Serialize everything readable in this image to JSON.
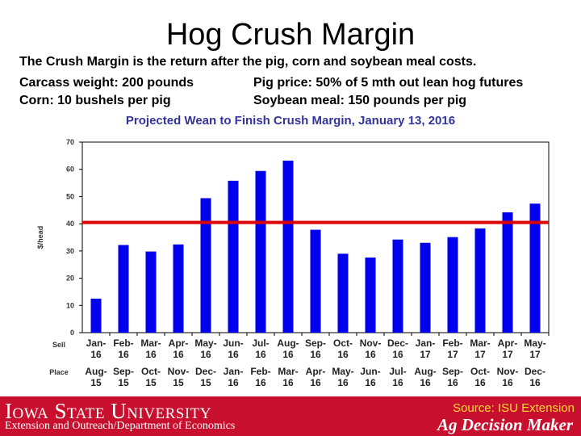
{
  "slide": {
    "title": "Hog Crush Margin",
    "line1": "The Crush Margin is the return after the pig, corn and soybean meal costs.",
    "line2_left": "Carcass weight:  200 pounds",
    "line2_right": "Pig price:  50% of 5 mth out lean hog futures",
    "line3_left": "Corn:  10 bushels per pig",
    "line3_right": "Soybean meal:  150 pounds per pig"
  },
  "footer": {
    "university": "Iowa State University",
    "department": "Extension and Outreach/Department of Economics",
    "source": "Source: ISU Extension",
    "brand": "Ag Decision Maker"
  },
  "colors": {
    "bar": "#0000ee",
    "reference_line": "#dd0000",
    "footer": "#c8102e",
    "chart_title": "#333399"
  },
  "chart_data": {
    "type": "bar",
    "title": "Projected Wean to Finish Crush Margin, January 13, 2016",
    "ylabel": "$/head",
    "ylim": [
      0,
      70
    ],
    "yticks": [
      0,
      10,
      20,
      30,
      40,
      50,
      60,
      70
    ],
    "grid": false,
    "row_labels": [
      "Sell",
      "Place"
    ],
    "sell": [
      "Jan-16",
      "Feb-16",
      "Mar-16",
      "Apr-16",
      "May-16",
      "Jun-16",
      "Jul-16",
      "Aug-16",
      "Sep-16",
      "Oct-16",
      "Nov-16",
      "Dec-16",
      "Jan-17",
      "Feb-17",
      "Mar-17",
      "Apr-17",
      "May-17"
    ],
    "place": [
      "Aug-15",
      "Sep-15",
      "Oct-15",
      "Nov-15",
      "Dec-15",
      "Jan-16",
      "Feb-16",
      "Mar-16",
      "Apr-16",
      "May-16",
      "Jun-16",
      "Jul-16",
      "Aug-16",
      "Sep-16",
      "Oct-16",
      "Nov-16",
      "Dec-16"
    ],
    "values": [
      12.5,
      32.2,
      29.8,
      32.4,
      49.4,
      55.8,
      59.4,
      63.2,
      37.8,
      29.0,
      27.6,
      34.2,
      33.0,
      35.1,
      38.3,
      44.2,
      47.4
    ],
    "reference_line": 40.5
  }
}
